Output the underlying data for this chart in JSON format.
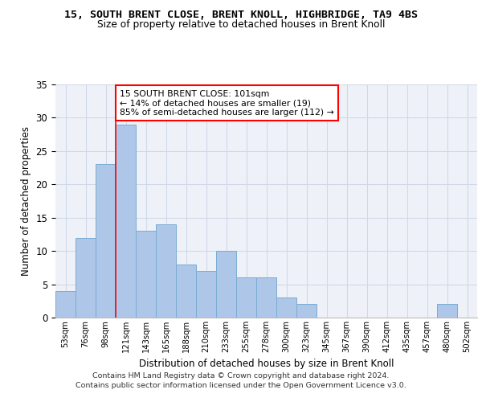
{
  "title_line1": "15, SOUTH BRENT CLOSE, BRENT KNOLL, HIGHBRIDGE, TA9 4BS",
  "title_line2": "Size of property relative to detached houses in Brent Knoll",
  "xlabel": "Distribution of detached houses by size in Brent Knoll",
  "ylabel": "Number of detached properties",
  "bar_labels": [
    "53sqm",
    "76sqm",
    "98sqm",
    "121sqm",
    "143sqm",
    "165sqm",
    "188sqm",
    "210sqm",
    "233sqm",
    "255sqm",
    "278sqm",
    "300sqm",
    "323sqm",
    "345sqm",
    "367sqm",
    "390sqm",
    "412sqm",
    "435sqm",
    "457sqm",
    "480sqm",
    "502sqm"
  ],
  "bar_values": [
    4,
    12,
    23,
    29,
    13,
    14,
    8,
    7,
    10,
    6,
    6,
    3,
    2,
    0,
    0,
    0,
    0,
    0,
    0,
    2,
    0
  ],
  "bar_color": "#aec6e8",
  "bar_edge_color": "#7aacd4",
  "grid_color": "#d0d8e8",
  "background_color": "#eef2f8",
  "annotation_text": "15 SOUTH BRENT CLOSE: 101sqm\n← 14% of detached houses are smaller (19)\n85% of semi-detached houses are larger (112) →",
  "annotation_box_color": "white",
  "annotation_box_edge_color": "red",
  "ylim": [
    0,
    35
  ],
  "yticks": [
    0,
    5,
    10,
    15,
    20,
    25,
    30,
    35
  ],
  "footer_line1": "Contains HM Land Registry data © Crown copyright and database right 2024.",
  "footer_line2": "Contains public sector information licensed under the Open Government Licence v3.0."
}
